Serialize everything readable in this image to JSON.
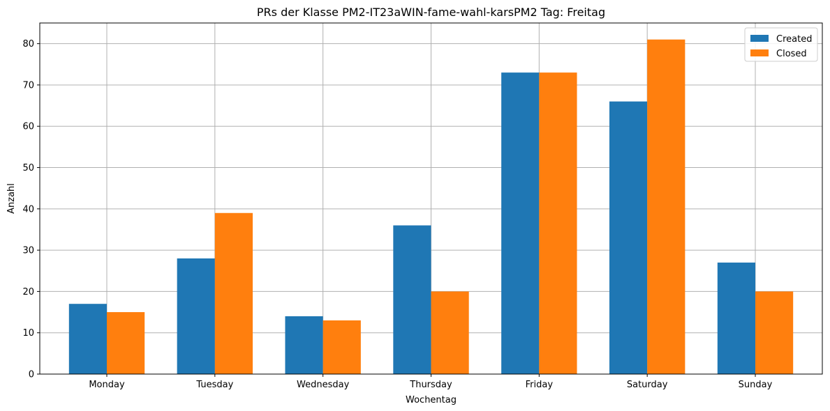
{
  "chart_data": {
    "type": "bar",
    "title": "PRs der Klasse PM2-IT23aWIN-fame-wahl-karsPM2 Tag: Freitag",
    "xlabel": "Wochentag",
    "ylabel": "Anzahl",
    "categories": [
      "Monday",
      "Tuesday",
      "Wednesday",
      "Thursday",
      "Friday",
      "Saturday",
      "Sunday"
    ],
    "series": [
      {
        "name": "Created",
        "color": "#1f77b4",
        "values": [
          17,
          28,
          14,
          36,
          73,
          66,
          27
        ]
      },
      {
        "name": "Closed",
        "color": "#ff7f0e",
        "values": [
          15,
          39,
          13,
          20,
          73,
          81,
          20
        ]
      }
    ],
    "ylim": [
      0,
      85
    ],
    "yticks": [
      0,
      10,
      20,
      30,
      40,
      50,
      60,
      70,
      80
    ],
    "grid": true,
    "legend_position": "top-right"
  }
}
